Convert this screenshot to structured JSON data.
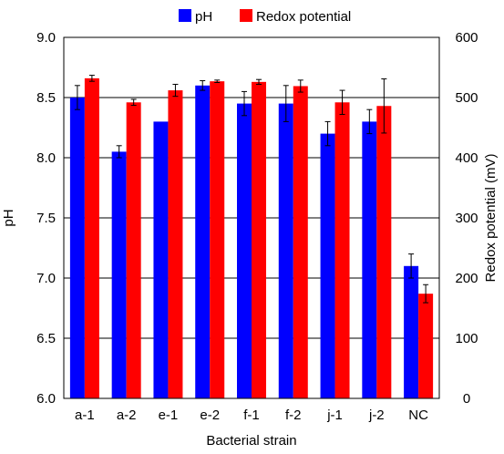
{
  "chart_data": {
    "type": "bar",
    "categories": [
      "a-1",
      "a-2",
      "e-1",
      "e-2",
      "f-1",
      "f-2",
      "j-1",
      "j-2",
      "NC"
    ],
    "xlabel": "Bacterial strain",
    "ylabel": "pH",
    "y2label": "Redox potential (mV)",
    "ylim": [
      6.0,
      9.0
    ],
    "y2lim": [
      0,
      600
    ],
    "yticks": [
      "6.0",
      "6.5",
      "7.0",
      "7.5",
      "8.0",
      "8.5",
      "9.0"
    ],
    "y2ticks": [
      "0",
      "100",
      "200",
      "300",
      "400",
      "500",
      "600"
    ],
    "grid": true,
    "legend_position": "top",
    "series": [
      {
        "name": "pH",
        "axis": "left",
        "color": "#0000ff",
        "values": [
          8.5,
          8.05,
          8.3,
          8.6,
          8.45,
          8.45,
          8.2,
          8.3,
          7.1
        ],
        "errors": [
          0.1,
          0.05,
          0.0,
          0.04,
          0.1,
          0.15,
          0.1,
          0.1,
          0.1
        ]
      },
      {
        "name": "Redox potential",
        "axis": "right",
        "color": "#ff0000",
        "values": [
          532,
          492,
          512,
          527,
          526,
          519,
          492,
          486,
          174
        ],
        "errors": [
          5,
          5,
          10,
          2,
          4,
          10,
          20,
          45,
          15
        ]
      }
    ]
  }
}
